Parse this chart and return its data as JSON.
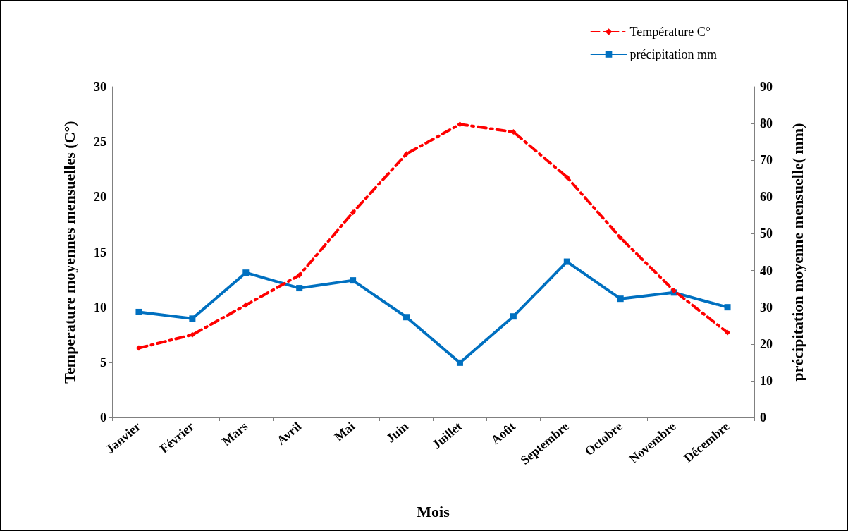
{
  "chart_data": {
    "type": "line",
    "xlabel": "Mois",
    "ylabel": "Temperature moyennes mensuelles (C°)",
    "y2label": "précipitation moyenne mensuelle( mm)",
    "categories": [
      "Janvier",
      "Février",
      "Mars",
      "Avril",
      "Mai",
      "Juin",
      "Juillet",
      "Août",
      "Septembre",
      "Octobre",
      "Novembre",
      "Décembre"
    ],
    "series": [
      {
        "name": "Température C°",
        "color": "#ff0000",
        "line_style": "dashed",
        "marker": "diamond",
        "values": [
          6.3,
          7.5,
          10.2,
          12.9,
          18.6,
          23.9,
          26.6,
          25.9,
          21.8,
          16.3,
          11.5,
          7.7
        ]
      },
      {
        "name": "précipitation mm",
        "color": "#0070c0",
        "line_style": "solid",
        "marker": "square",
        "axis": "y2",
        "values": [
          28.7,
          26.9,
          39.4,
          35.2,
          37.3,
          27.3,
          14.9,
          27.5,
          42.4,
          32.3,
          34.0,
          30.0
        ]
      }
    ],
    "ylim": [
      0,
      30
    ],
    "yticks": [
      0,
      5,
      10,
      15,
      20,
      25,
      30
    ],
    "y2lim": [
      0,
      90
    ],
    "y2ticks": [
      0,
      10,
      20,
      30,
      40,
      50,
      60,
      70,
      80,
      90
    ],
    "grid": false,
    "legend": "top right"
  }
}
